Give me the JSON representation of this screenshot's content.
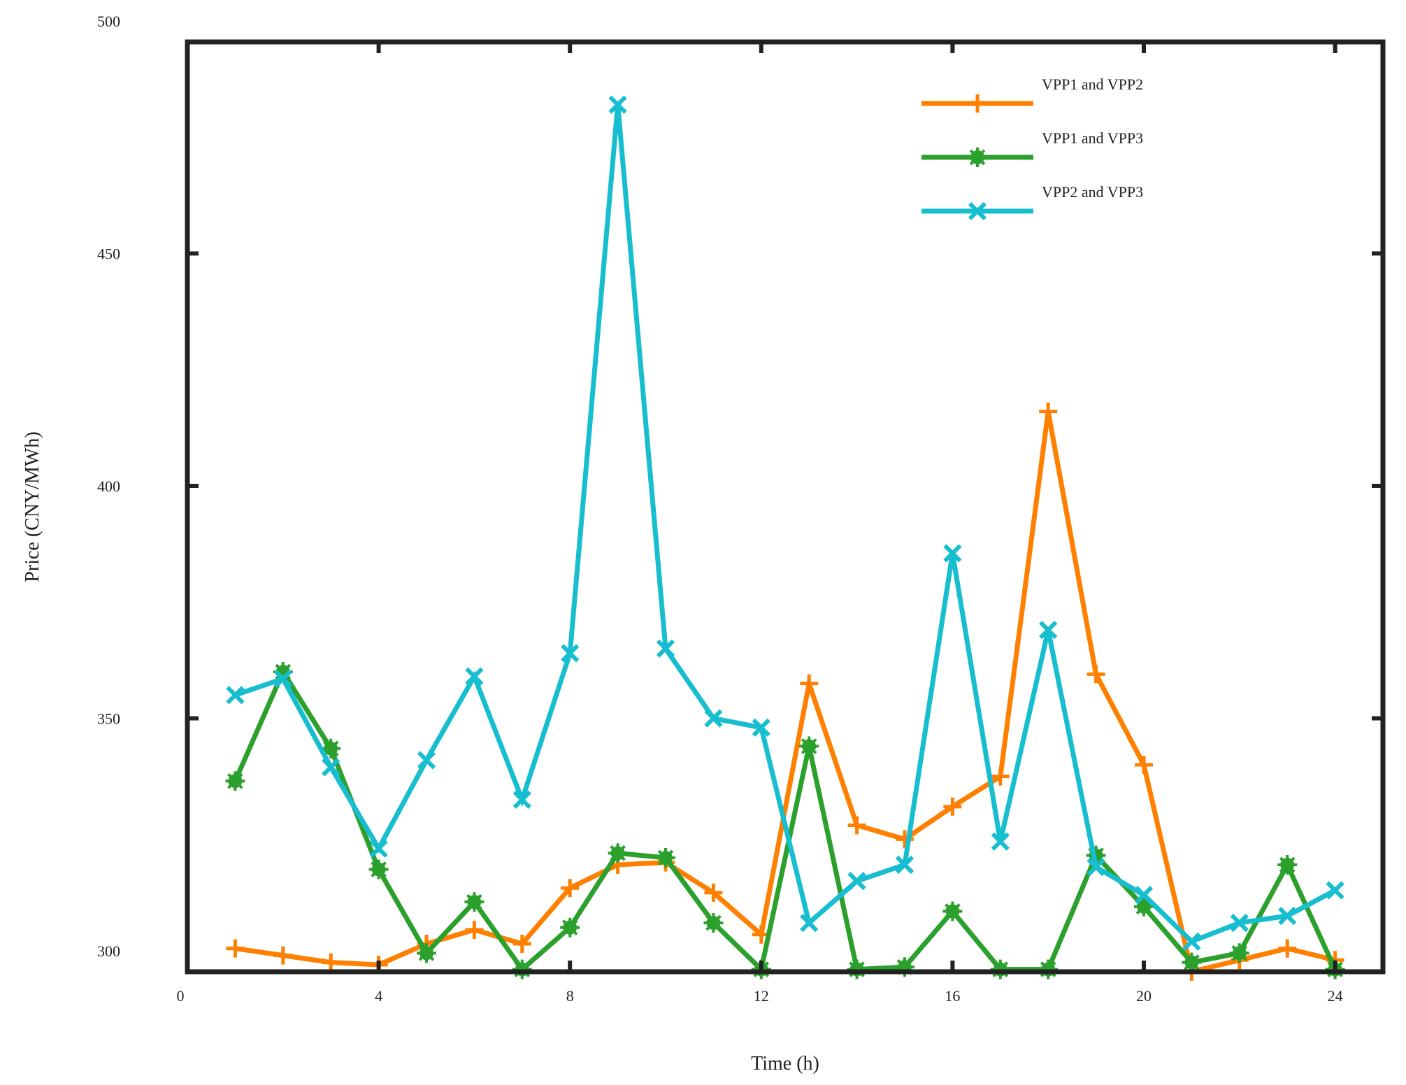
{
  "chart_data": {
    "type": "line",
    "title": "",
    "xlabel": "Time (h)",
    "ylabel": "Price (CNY/MWh)",
    "xlim": [
      0,
      25
    ],
    "ylim": [
      300,
      500
    ],
    "xticks": [
      0,
      4,
      8,
      12,
      16,
      20,
      24
    ],
    "yticks": [
      300,
      350,
      400,
      450,
      500
    ],
    "grid": false,
    "legend_position": "top-right",
    "x": [
      1,
      2,
      3,
      4,
      5,
      6,
      7,
      8,
      9,
      10,
      11,
      12,
      13,
      14,
      15,
      16,
      17,
      18,
      19,
      20,
      21,
      22,
      23,
      24
    ],
    "series": [
      {
        "name": "VPP1 and VPP2",
        "color": "#ff8000",
        "marker": "plus",
        "values": [
          300.5,
          299,
          297.5,
          297,
          301.5,
          304.5,
          301.5,
          313.5,
          318.5,
          319,
          312.5,
          303.5,
          357.5,
          327,
          324,
          331,
          337.5,
          416,
          359.5,
          340,
          295.5,
          298,
          300.5,
          298
        ]
      },
      {
        "name": "VPP1 and VPP3",
        "color": "#2ca02c",
        "marker": "star",
        "values": [
          336.5,
          360,
          343.5,
          317.5,
          299.5,
          310.5,
          296,
          305,
          321,
          320,
          306,
          296,
          344,
          296,
          296.5,
          308.5,
          296,
          296,
          320.5,
          309.5,
          297.5,
          299.5,
          318.5,
          296
        ]
      },
      {
        "name": "VPP2 and VPP3",
        "color": "#17becf",
        "marker": "cross",
        "values": [
          355,
          358.5,
          339.5,
          322,
          341,
          359,
          332.5,
          364,
          482,
          365,
          350,
          348,
          306,
          315,
          318.5,
          385.5,
          323.5,
          369,
          318,
          312,
          302,
          306,
          307.5,
          313
        ]
      }
    ]
  }
}
